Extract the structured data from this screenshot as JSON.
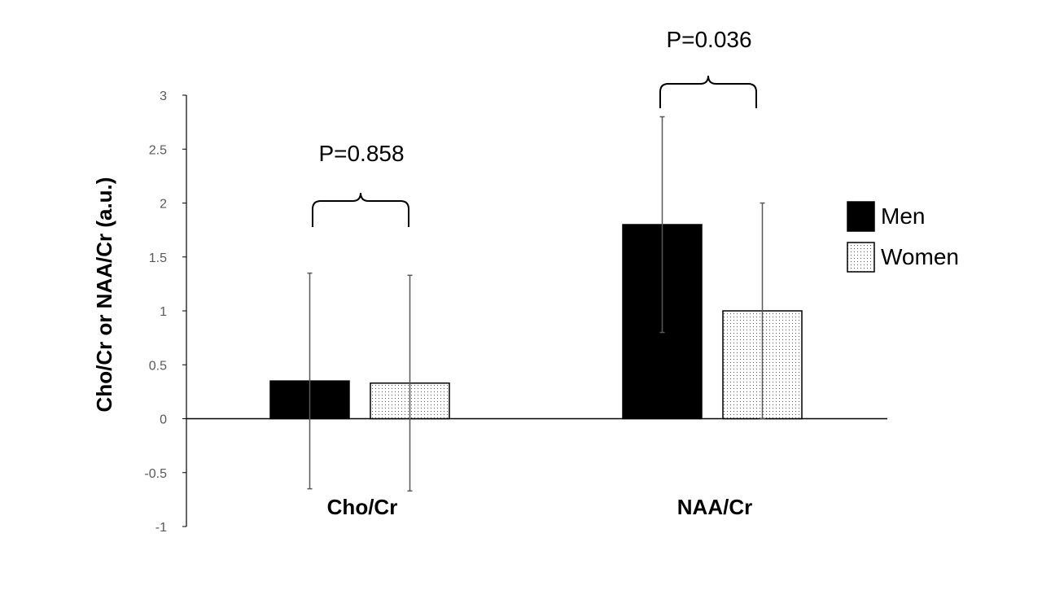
{
  "chart_data": {
    "type": "bar",
    "title": "",
    "xlabel": "",
    "ylabel": "Cho/Cr or NAA/Cr (a.u.)",
    "ylim": [
      -1,
      3
    ],
    "yticks": [
      "-1",
      "-0.5",
      "0",
      "0.5",
      "1",
      "1.5",
      "2",
      "2.5",
      "3"
    ],
    "categories": [
      "Cho/Cr",
      "NAA/Cr"
    ],
    "series": [
      {
        "name": "Men",
        "values": [
          0.35,
          1.8
        ],
        "error": [
          1.0,
          1.0
        ],
        "color": "#000000",
        "pattern": "solid"
      },
      {
        "name": "Women",
        "values": [
          0.33,
          1.0
        ],
        "error": [
          1.0,
          1.0
        ],
        "color": "#ffffff",
        "pattern": "dotted"
      }
    ],
    "annotations": [
      "P=0.858",
      "P=0.036"
    ],
    "legend_position": "right",
    "grid": false
  }
}
